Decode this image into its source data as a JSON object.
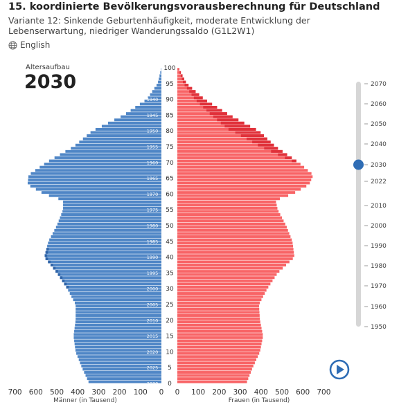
{
  "header": {
    "title": "15. koordinierte Bevölkerungsvorausberechnung für Deutschland",
    "subtitle": "Variante 12: Sinkende Geburtenhäufigkeit, moderate Entwicklung der Lebenserwartung, niedriger Wanderungssaldo (G1L2W1)",
    "language_label": "English"
  },
  "panel": {
    "label": "Altersaufbau",
    "year": "2030"
  },
  "colors": {
    "male": "#4f86c6",
    "male_dark": "#2f64a8",
    "female": "#f86466",
    "female_dark": "#e0313a",
    "slider_knob": "#2f6db5",
    "play": "#2f6db5"
  },
  "slider": {
    "years": [
      "2070",
      "2060",
      "2050",
      "2040",
      "2030",
      "2022",
      "2010",
      "2000",
      "1990",
      "1980",
      "1970",
      "1960",
      "1950"
    ],
    "selected": "2030"
  },
  "chart_data": {
    "type": "bar",
    "orientation": "horizontal-pyramid",
    "xlabel_left": "Männer (in Tausend)",
    "xlabel_right": "Frauen (in Tausend)",
    "xlim": [
      0,
      700
    ],
    "x_ticks": [
      "700",
      "600",
      "500",
      "400",
      "300",
      "200",
      "100",
      "0",
      "0",
      "100",
      "200",
      "300",
      "400",
      "500",
      "600",
      "700"
    ],
    "age_ticks": [
      "100",
      "95",
      "90",
      "85",
      "80",
      "75",
      "70",
      "65",
      "60",
      "55",
      "50",
      "45",
      "40",
      "35",
      "30",
      "25",
      "20",
      "15",
      "10",
      "5",
      "0"
    ],
    "birth_year_labels": [
      "1940",
      "1945",
      "1950",
      "1955",
      "1960",
      "1965",
      "1970",
      "1975",
      "1980",
      "1985",
      "1990",
      "1995",
      "2000",
      "2005",
      "2010",
      "2015",
      "2020",
      "2025",
      "2030"
    ],
    "ages_key": [
      0,
      5,
      10,
      15,
      20,
      25,
      30,
      35,
      40,
      45,
      50,
      55,
      58,
      60,
      63,
      66,
      70,
      75,
      80,
      85,
      90,
      95,
      100
    ],
    "series": [
      {
        "name": "Männer",
        "values_key": [
          345,
          380,
          410,
          420,
          410,
          410,
          450,
          500,
          560,
          540,
          500,
          470,
          470,
          560,
          640,
          635,
          550,
          420,
          330,
          180,
          70,
          18,
          0
        ]
      },
      {
        "name": "Frauen",
        "values_key": [
          330,
          360,
          395,
          410,
          395,
          390,
          430,
          480,
          560,
          550,
          520,
          480,
          470,
          550,
          630,
          650,
          580,
          470,
          390,
          250,
          130,
          45,
          5
        ]
      }
    ]
  }
}
